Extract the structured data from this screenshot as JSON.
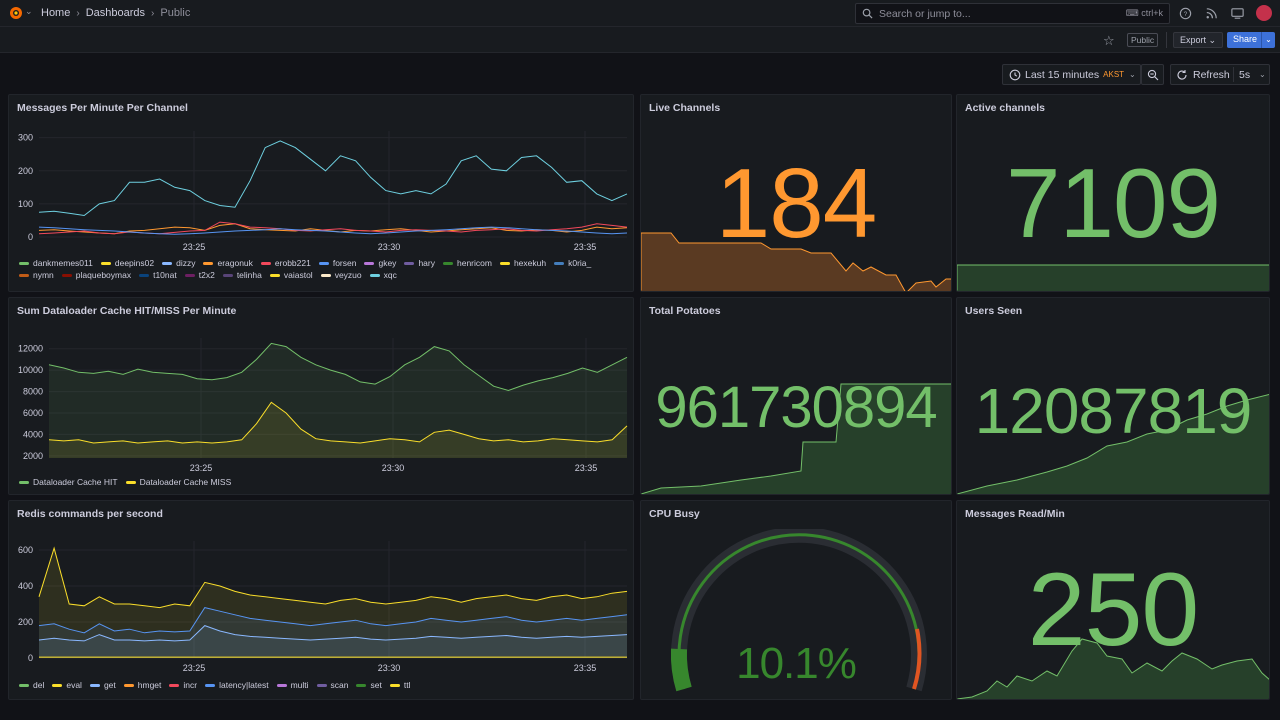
{
  "nav": {
    "breadcrumb": [
      "Home",
      "Dashboards",
      "Public"
    ],
    "search_placeholder": "Search or jump to...",
    "search_shortcut": "ctrl+k"
  },
  "toolbar": {
    "public_tag": "Public",
    "export_label": "Export",
    "share_label": "Share"
  },
  "timepicker": {
    "range": "Last 15 minutes",
    "timezone": "AKST",
    "refresh_label": "Refresh",
    "interval": "5s"
  },
  "panels": {
    "messages": {
      "title": "Messages Per Minute Per Channel",
      "legend": [
        {
          "name": "dankmemes011",
          "color": "#73bf69"
        },
        {
          "name": "deepins02",
          "color": "#fade2a"
        },
        {
          "name": "dizzy",
          "color": "#8ab8ff"
        },
        {
          "name": "eragonuk",
          "color": "#ff9830"
        },
        {
          "name": "erobb221",
          "color": "#f2495c"
        },
        {
          "name": "forsen",
          "color": "#5794f2"
        },
        {
          "name": "gkey",
          "color": "#b877d9"
        },
        {
          "name": "hary",
          "color": "#705da0"
        },
        {
          "name": "henricom",
          "color": "#37872d"
        },
        {
          "name": "hexekuh",
          "color": "#fade2a"
        },
        {
          "name": "k0ria_",
          "color": "#447ebc"
        },
        {
          "name": "nymn",
          "color": "#c15c17"
        },
        {
          "name": "plaqueboymax",
          "color": "#890f02"
        },
        {
          "name": "t10nat",
          "color": "#0a437c"
        },
        {
          "name": "t2x2",
          "color": "#6d1f62"
        },
        {
          "name": "telinha",
          "color": "#584477"
        },
        {
          "name": "vaiastol",
          "color": "#fade2a"
        },
        {
          "name": "veyzuo",
          "color": "#fceaca"
        },
        {
          "name": "xqc",
          "color": "#6ed0e0"
        }
      ]
    },
    "cache": {
      "title": "Sum Dataloader Cache HIT/MISS Per Minute",
      "legend": [
        {
          "name": "Dataloader Cache HIT",
          "color": "#73bf69"
        },
        {
          "name": "Dataloader Cache MISS",
          "color": "#fade2a"
        }
      ]
    },
    "redis": {
      "title": "Redis commands per second",
      "legend": [
        {
          "name": "del",
          "color": "#73bf69"
        },
        {
          "name": "eval",
          "color": "#fade2a"
        },
        {
          "name": "get",
          "color": "#8ab8ff"
        },
        {
          "name": "hmget",
          "color": "#ff9830"
        },
        {
          "name": "incr",
          "color": "#f2495c"
        },
        {
          "name": "latency|latest",
          "color": "#5794f2"
        },
        {
          "name": "multi",
          "color": "#b877d9"
        },
        {
          "name": "scan",
          "color": "#705da0"
        },
        {
          "name": "set",
          "color": "#37872d"
        },
        {
          "name": "ttl",
          "color": "#fade2a"
        }
      ]
    },
    "live_channels": {
      "title": "Live Channels",
      "value": "184",
      "color": "#ff9830"
    },
    "active_channels": {
      "title": "Active channels",
      "value": "7109",
      "color": "#73bf69"
    },
    "total_potatoes": {
      "title": "Total Potatoes",
      "value": "961730894",
      "color": "#73bf69"
    },
    "users_seen": {
      "title": "Users Seen",
      "value": "12087819",
      "color": "#73bf69"
    },
    "cpu_busy": {
      "title": "CPU Busy",
      "value": "10.1%",
      "percent": 10.1,
      "color": "#73bf69"
    },
    "messages_read": {
      "title": "Messages Read/Min",
      "value": "250",
      "color": "#73bf69"
    }
  },
  "chart_data": [
    {
      "type": "line",
      "title": "Messages Per Minute Per Channel",
      "x_ticks": [
        "23:25",
        "23:30",
        "23:35"
      ],
      "y_ticks": [
        0,
        100,
        200,
        300
      ],
      "ylim": [
        0,
        320
      ],
      "series": [
        {
          "name": "xqc",
          "color": "#6ed0e0",
          "values": [
            75,
            78,
            72,
            65,
            100,
            110,
            165,
            165,
            175,
            150,
            140,
            110,
            95,
            90,
            170,
            270,
            290,
            270,
            235,
            200,
            245,
            230,
            180,
            140,
            130,
            140,
            130,
            160,
            230,
            245,
            205,
            200,
            240,
            245,
            210,
            165,
            170,
            130,
            110,
            130
          ]
        },
        {
          "name": "eragonuk",
          "color": "#ff9830",
          "values": [
            20,
            22,
            18,
            15,
            12,
            10,
            18,
            20,
            25,
            30,
            28,
            20,
            35,
            40,
            25,
            22,
            20,
            18,
            25,
            20,
            15,
            20,
            18,
            22,
            25,
            20,
            15,
            18,
            22,
            25,
            28,
            20,
            18,
            22,
            20,
            15,
            20,
            30,
            25,
            28
          ]
        },
        {
          "name": "erobb221",
          "color": "#f2495c",
          "values": [
            10,
            12,
            15,
            18,
            12,
            10,
            15,
            12,
            10,
            14,
            18,
            20,
            45,
            40,
            30,
            28,
            25,
            20,
            18,
            22,
            25,
            20,
            18,
            15,
            20,
            22,
            20,
            18,
            15,
            20,
            22,
            25,
            20,
            18,
            22,
            25,
            30,
            40,
            35,
            30
          ]
        },
        {
          "name": "forsen",
          "color": "#5794f2",
          "values": [
            30,
            28,
            25,
            22,
            20,
            18,
            15,
            12,
            10,
            8,
            10,
            12,
            15,
            18,
            20,
            22,
            25,
            22,
            20,
            18,
            15,
            12,
            10,
            12,
            15,
            18,
            20,
            22,
            25,
            28,
            30,
            28,
            25,
            22,
            20,
            18,
            15,
            12,
            10,
            12
          ]
        }
      ]
    },
    {
      "type": "line",
      "title": "Sum Dataloader Cache HIT/MISS Per Minute",
      "x_ticks": [
        "23:25",
        "23:30",
        "23:35"
      ],
      "y_ticks": [
        2000,
        4000,
        6000,
        8000,
        10000,
        12000
      ],
      "ylim": [
        1800,
        13000
      ],
      "series": [
        {
          "name": "Dataloader Cache HIT",
          "color": "#73bf69",
          "values": [
            10500,
            10200,
            9800,
            9700,
            9900,
            9600,
            10100,
            9800,
            9700,
            9600,
            9200,
            9100,
            9300,
            9800,
            11000,
            12500,
            12200,
            11200,
            10500,
            10000,
            9600,
            8900,
            8700,
            9400,
            10500,
            11200,
            12200,
            11800,
            10500,
            9500,
            8500,
            8100,
            8600,
            9000,
            9300,
            9700,
            10200,
            9800,
            10500,
            11200
          ]
        },
        {
          "name": "Dataloader Cache MISS",
          "color": "#fade2a",
          "values": [
            3500,
            3400,
            3500,
            3200,
            3300,
            3400,
            3200,
            3300,
            3400,
            3200,
            3300,
            3200,
            3300,
            3500,
            5000,
            7000,
            6000,
            4500,
            3600,
            3400,
            3300,
            3200,
            3400,
            3600,
            3500,
            3300,
            4200,
            4400,
            4000,
            3600,
            3400,
            3500,
            3300,
            3400,
            3600,
            3500,
            3400,
            3300,
            3500,
            4800
          ]
        }
      ]
    },
    {
      "type": "area",
      "title": "Redis commands per second",
      "x_ticks": [
        "23:25",
        "23:30",
        "23:35"
      ],
      "y_ticks": [
        0,
        200,
        400,
        600
      ],
      "ylim": [
        0,
        650
      ],
      "series": [
        {
          "name": "ttl",
          "color": "#fade2a",
          "values": [
            340,
            610,
            300,
            290,
            340,
            300,
            300,
            290,
            280,
            300,
            290,
            420,
            400,
            370,
            350,
            340,
            330,
            320,
            310,
            300,
            320,
            330,
            310,
            300,
            310,
            320,
            340,
            330,
            310,
            330,
            340,
            350,
            330,
            320,
            340,
            350,
            330,
            340,
            360,
            370
          ]
        },
        {
          "name": "latency|latest",
          "color": "#5794f2",
          "values": [
            180,
            190,
            160,
            140,
            190,
            150,
            160,
            140,
            150,
            145,
            150,
            280,
            260,
            240,
            220,
            210,
            200,
            190,
            180,
            190,
            200,
            210,
            190,
            180,
            190,
            200,
            220,
            210,
            200,
            210,
            220,
            230,
            210,
            200,
            210,
            220,
            210,
            220,
            230,
            240
          ]
        },
        {
          "name": "get",
          "color": "#8ab8ff",
          "values": [
            100,
            110,
            100,
            95,
            130,
            100,
            100,
            95,
            100,
            95,
            100,
            180,
            150,
            130,
            120,
            115,
            110,
            105,
            100,
            105,
            110,
            115,
            105,
            100,
            105,
            110,
            120,
            115,
            110,
            115,
            120,
            125,
            115,
            110,
            115,
            120,
            115,
            120,
            125,
            130
          ]
        },
        {
          "name": "eval",
          "color": "#fade2a",
          "values": [
            5,
            5,
            5,
            5,
            5,
            5,
            5,
            5,
            5,
            5,
            5,
            5,
            5,
            5,
            5,
            5,
            5,
            5,
            5,
            5,
            5,
            5,
            5,
            5,
            5,
            5,
            5,
            5,
            5,
            5,
            5,
            5,
            5,
            5,
            5,
            5,
            5,
            5,
            5,
            5
          ]
        }
      ]
    }
  ]
}
